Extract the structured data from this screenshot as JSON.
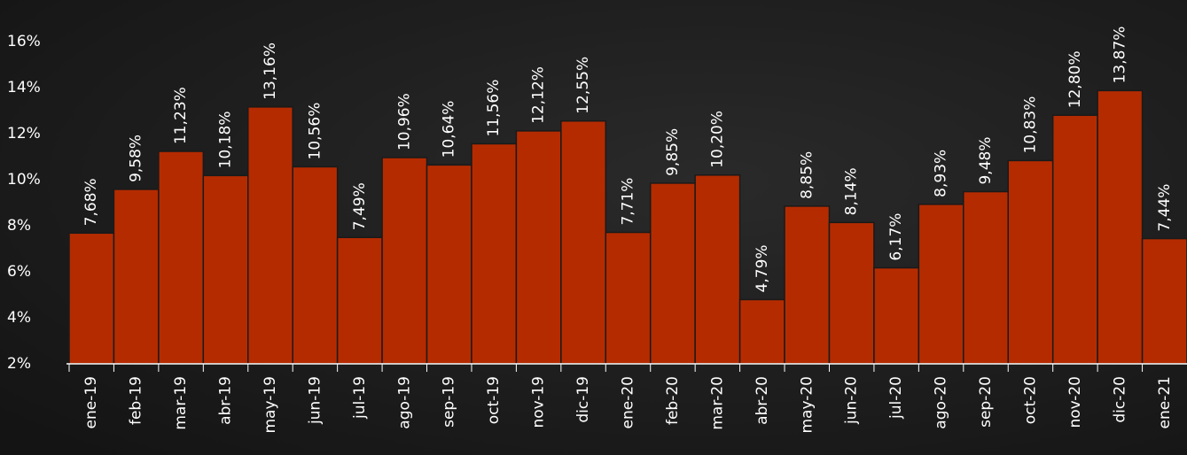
{
  "chart_data": {
    "type": "bar",
    "categories": [
      "ene-19",
      "feb-19",
      "mar-19",
      "abr-19",
      "may-19",
      "jun-19",
      "jul-19",
      "ago-19",
      "sep-19",
      "oct-19",
      "nov-19",
      "dic-19",
      "ene-20",
      "feb-20",
      "mar-20",
      "abr-20",
      "may-20",
      "jun-20",
      "jul-20",
      "ago-20",
      "sep-20",
      "oct-20",
      "nov-20",
      "dic-20",
      "ene-21"
    ],
    "values": [
      7.68,
      9.58,
      11.23,
      10.18,
      13.16,
      10.56,
      7.49,
      10.96,
      10.64,
      11.56,
      12.12,
      12.55,
      7.71,
      9.85,
      10.2,
      4.79,
      8.85,
      8.14,
      6.17,
      8.93,
      9.48,
      10.83,
      12.8,
      13.87,
      7.44
    ],
    "value_labels": [
      "7,68%",
      "9,58%",
      "11,23%",
      "10,18%",
      "13,16%",
      "10,56%",
      "7,49%",
      "10,96%",
      "10,64%",
      "11,56%",
      "12,12%",
      "12,55%",
      "7,71%",
      "9,85%",
      "10,20%",
      "4,79%",
      "8,85%",
      "8,14%",
      "6,17%",
      "8,93%",
      "9,48%",
      "10,83%",
      "12,80%",
      "13,87%",
      "7,44%"
    ],
    "color": "#b52b00",
    "ylim": [
      2,
      18
    ],
    "yticks": [
      {
        "value": 2,
        "label": "2%"
      },
      {
        "value": 4,
        "label": "4%"
      },
      {
        "value": 6,
        "label": "6%"
      },
      {
        "value": 8,
        "label": "8%"
      },
      {
        "value": 10,
        "label": "10%"
      },
      {
        "value": 12,
        "label": "12%"
      },
      {
        "value": 14,
        "label": "14%"
      },
      {
        "value": 16,
        "label": "16%"
      }
    ],
    "grid": false
  }
}
